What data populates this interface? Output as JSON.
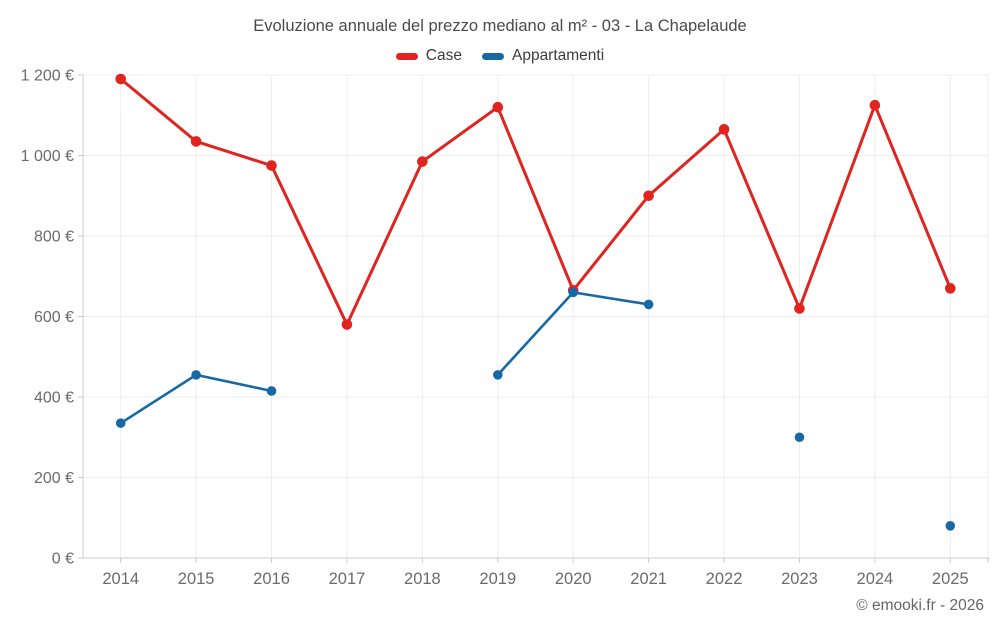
{
  "title": "Evoluzione annuale del prezzo mediano al m² - 03 - La Chapelaude",
  "footer": "© emooki.fr - 2026",
  "legend": [
    {
      "label": "Case",
      "color": "#e0241f"
    },
    {
      "label": "Appartamenti",
      "color": "#1769a6"
    }
  ],
  "colors": {
    "grid": "#ededed",
    "axis": "#cccccc",
    "tick_label": "#6b6b6b",
    "title": "#4a4a4a",
    "footer": "#666666",
    "background": "#ffffff"
  },
  "chart_data": {
    "type": "line",
    "title": "Evoluzione annuale del prezzo mediano al m² - 03 - La Chapelaude",
    "x": [
      "2014",
      "2015",
      "2016",
      "2017",
      "2018",
      "2019",
      "2020",
      "2021",
      "2022",
      "2023",
      "2024",
      "2025"
    ],
    "series": [
      {
        "name": "Case",
        "color": "#e0241f",
        "line_width": 3,
        "marker_radius": 5.3,
        "values": [
          1190,
          1035,
          975,
          580,
          985,
          1120,
          665,
          900,
          1065,
          620,
          1125,
          670
        ]
      },
      {
        "name": "Appartamenti",
        "color": "#1769a6",
        "line_width": 2.6,
        "marker_radius": 4.8,
        "values": [
          335,
          455,
          415,
          null,
          null,
          455,
          660,
          630,
          null,
          300,
          null,
          80
        ]
      }
    ],
    "ylim": [
      0,
      1200
    ],
    "yticks": [
      0,
      200,
      400,
      600,
      800,
      1000,
      1200
    ],
    "ytick_labels": [
      "0 €",
      "200 €",
      "400 €",
      "600 €",
      "800 €",
      "1 000 €",
      "1 200 €"
    ],
    "ylabel": "",
    "xlabel": "",
    "grid": true,
    "legend_position": "top"
  }
}
